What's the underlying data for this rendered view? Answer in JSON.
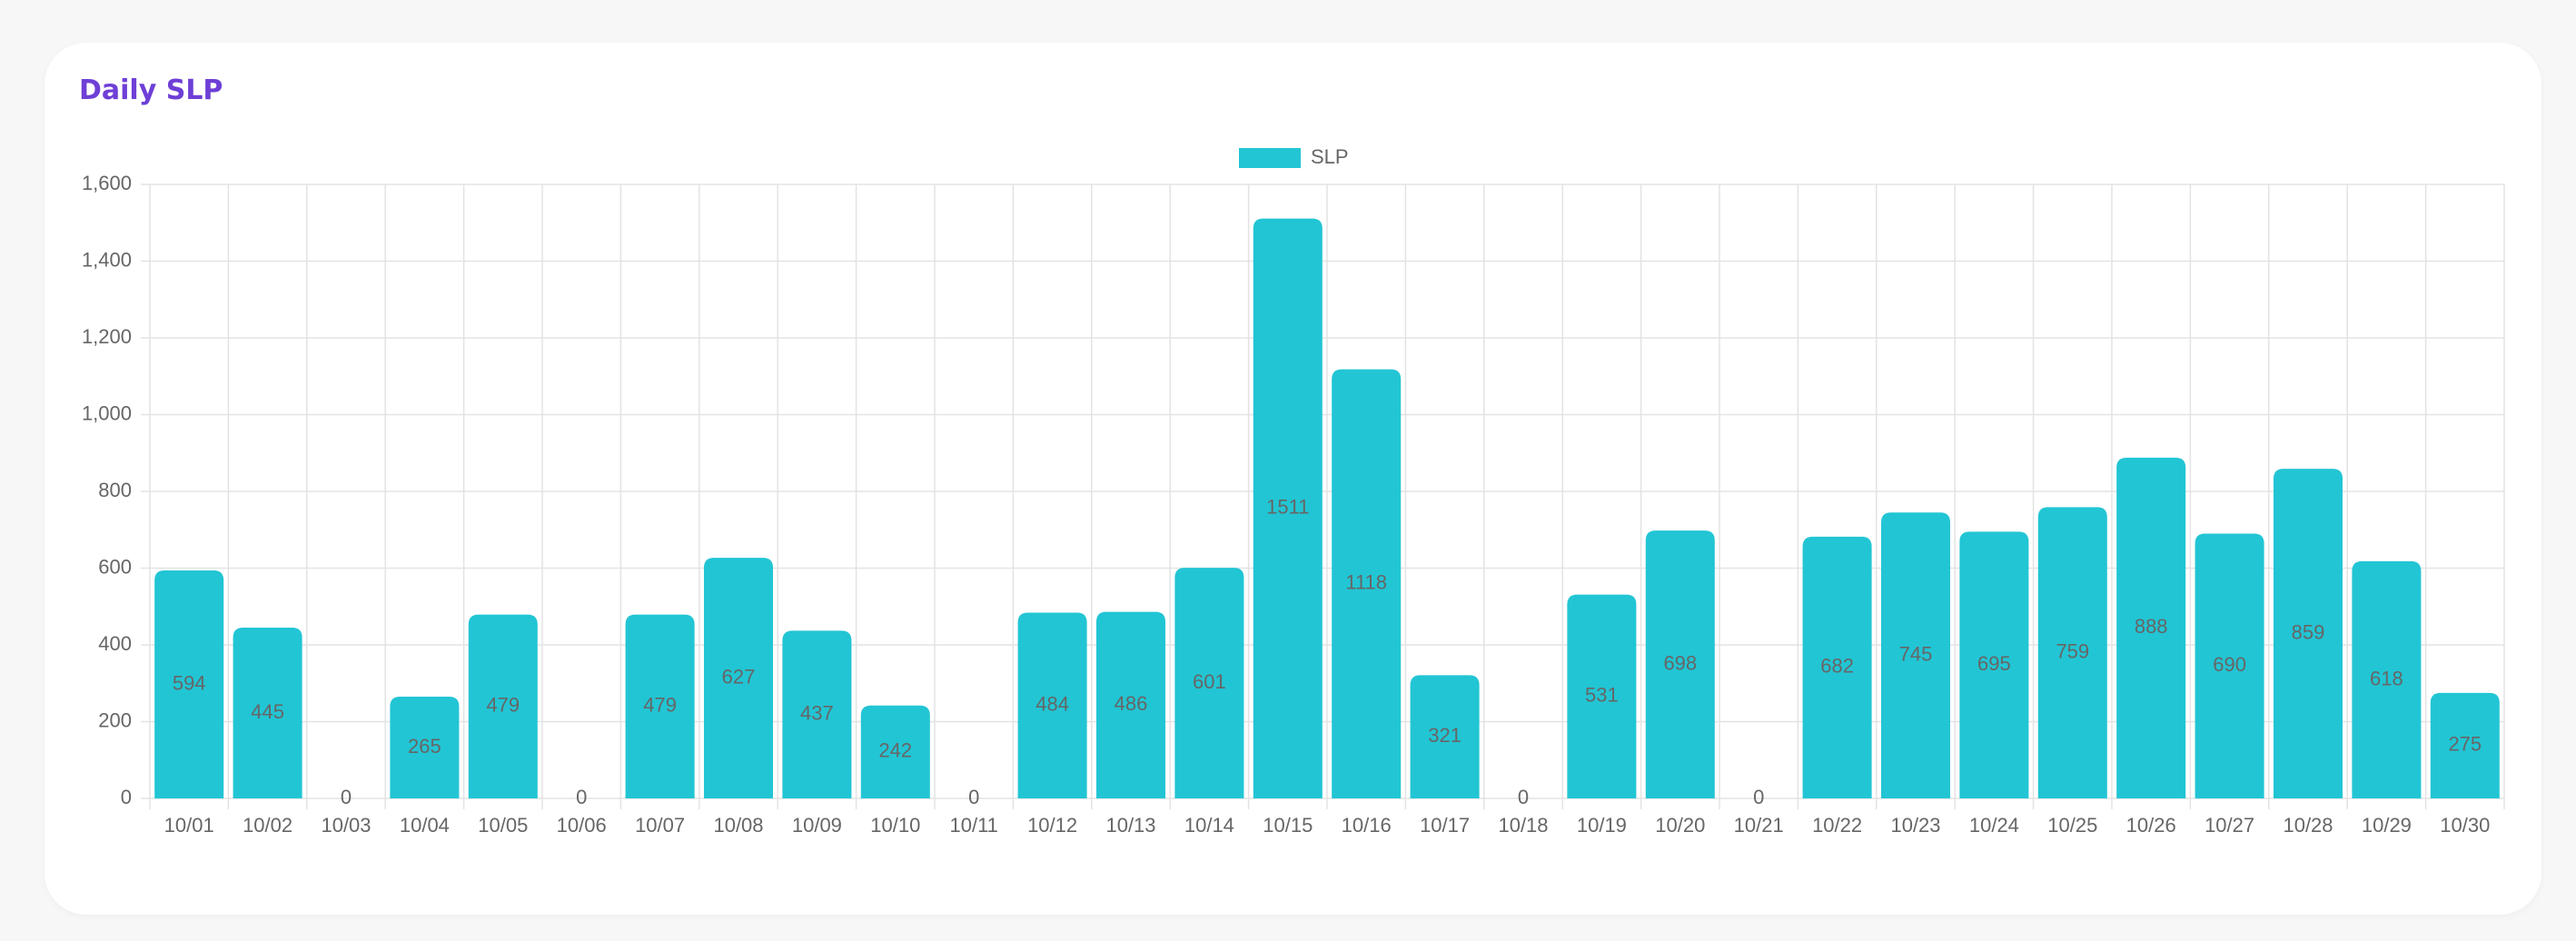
{
  "chart_data": {
    "type": "bar",
    "title": "Daily SLP",
    "categories": [
      "10/01",
      "10/02",
      "10/03",
      "10/04",
      "10/05",
      "10/06",
      "10/07",
      "10/08",
      "10/09",
      "10/10",
      "10/11",
      "10/12",
      "10/13",
      "10/14",
      "10/15",
      "10/16",
      "10/17",
      "10/18",
      "10/19",
      "10/20",
      "10/21",
      "10/22",
      "10/23",
      "10/24",
      "10/25",
      "10/26",
      "10/27",
      "10/28",
      "10/29",
      "10/30"
    ],
    "series": [
      {
        "name": "SLP",
        "color": "#22c5d4",
        "values": [
          594,
          445,
          0,
          265,
          479,
          0,
          479,
          627,
          437,
          242,
          0,
          484,
          486,
          601,
          1511,
          1118,
          321,
          0,
          531,
          698,
          0,
          682,
          745,
          695,
          759,
          888,
          690,
          859,
          618,
          275
        ]
      }
    ],
    "ylim": [
      0,
      1600
    ],
    "yticks": [
      0,
      200,
      400,
      600,
      800,
      {
        "value": 1000,
        "label": "1,000"
      },
      {
        "value": 1200,
        "label": "1,200"
      },
      {
        "value": 1400,
        "label": "1,400"
      },
      {
        "value": 1600,
        "label": "1,600"
      }
    ],
    "grid": true,
    "legend": "top",
    "data_labels": true
  }
}
